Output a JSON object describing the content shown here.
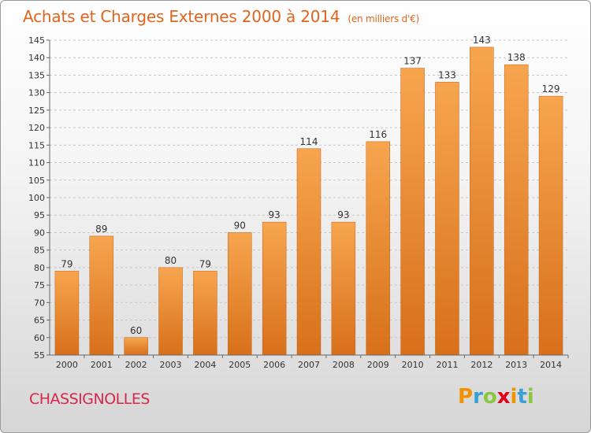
{
  "header": {
    "title": "Achats et Charges Externes 2000 à 2014",
    "subtitle": "(en milliers d'€)"
  },
  "commune": "CHASSIGNOLLES",
  "logo": {
    "letters": [
      "P",
      "r",
      "o",
      "x",
      "i",
      "t",
      "i"
    ],
    "colors": [
      "#f39200",
      "#3a9fd8",
      "#8cc63f",
      "#e2001a",
      "#f39200",
      "#3a9fd8",
      "#8cc63f"
    ]
  },
  "colors": {
    "bar_top": "#f7a54f",
    "bar_bottom": "#d8701a",
    "title": "#e0641c",
    "commune": "#d6284a"
  },
  "chart_data": {
    "type": "bar",
    "title": "Achats et Charges Externes 2000 à 2014",
    "subtitle": "(en milliers d'€)",
    "categories": [
      "2000",
      "2001",
      "2002",
      "2003",
      "2004",
      "2005",
      "2006",
      "2007",
      "2008",
      "2009",
      "2010",
      "2011",
      "2012",
      "2013",
      "2014"
    ],
    "values": [
      79,
      89,
      60,
      80,
      79,
      90,
      93,
      114,
      93,
      116,
      137,
      133,
      143,
      138,
      129
    ],
    "ylim": [
      55,
      145
    ],
    "yticks": [
      55,
      60,
      65,
      70,
      75,
      80,
      85,
      90,
      95,
      100,
      105,
      110,
      115,
      120,
      125,
      130,
      135,
      140,
      145
    ],
    "grid": true,
    "data_labels": true
  }
}
